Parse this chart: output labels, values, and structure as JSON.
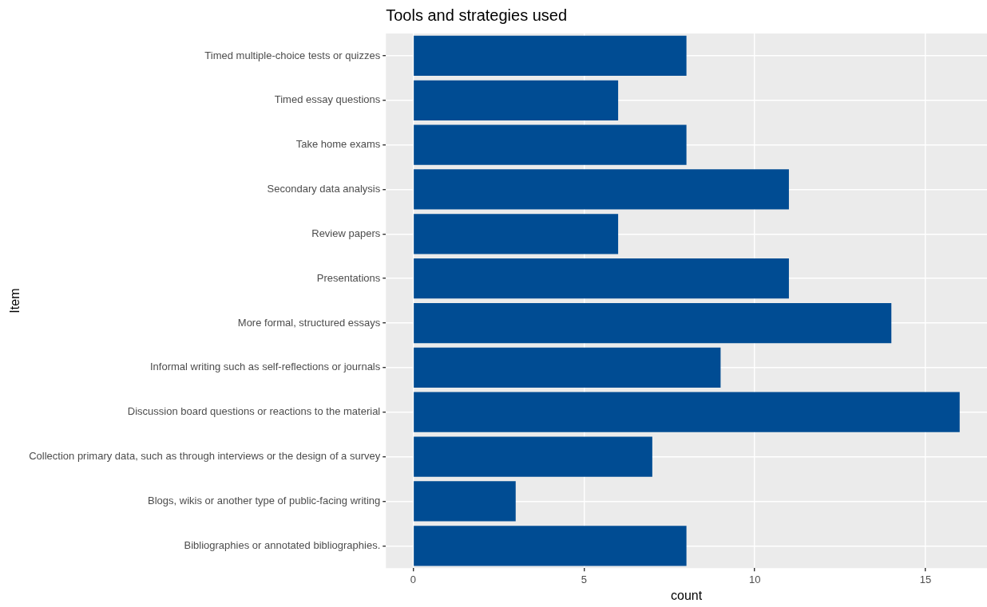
{
  "chart_data": {
    "type": "bar",
    "orientation": "horizontal",
    "title": "Tools and strategies used",
    "xlabel": "count",
    "ylabel": "Item",
    "categories": [
      "Timed multiple-choice tests or quizzes",
      "Timed essay questions",
      "Take home exams",
      "Secondary data analysis",
      "Review papers",
      "Presentations",
      "More formal, structured essays",
      "Informal writing such as self-reflections or journals",
      "Discussion board questions or reactions to the material",
      "Collection primary data, such as through interviews or the design of a survey",
      "Blogs, wikis or another type of public-facing writing",
      "Bibliographies or annotated bibliographies."
    ],
    "values": [
      8,
      6,
      8,
      11,
      6,
      11,
      14,
      9,
      16,
      7,
      3,
      8
    ],
    "color": "#004c93",
    "xlim": [
      -0.8,
      16.8
    ],
    "xticks": [
      0,
      5,
      10,
      15
    ],
    "grid": true
  }
}
